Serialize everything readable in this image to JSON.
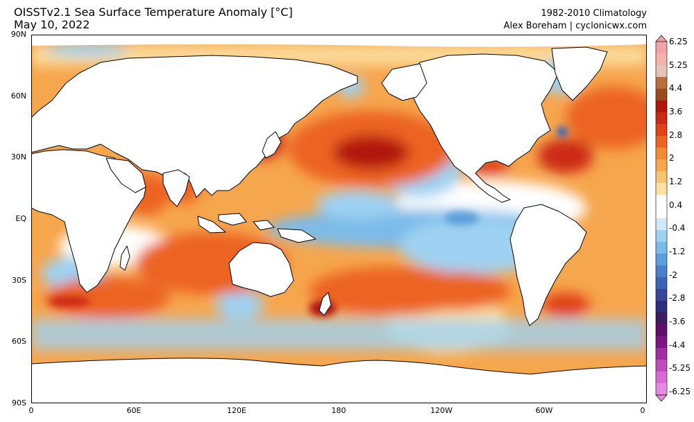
{
  "title": {
    "line1": "OISSTv2.1 Sea Surface Temperature Anomaly [°C]",
    "line2": "May 10, 2022"
  },
  "credits": {
    "line1": "1982-2010 Climatology",
    "line2": "Alex Boreham | cyclonicwx.com"
  },
  "lat_labels": [
    "90N",
    "60N",
    "30N",
    "EQ",
    "30S",
    "60S",
    "90S"
  ],
  "lon_labels": [
    "0",
    "60E",
    "120E",
    "180",
    "120W",
    "60W",
    "0"
  ],
  "colorbar": {
    "labels": [
      "6.25",
      "5.25",
      "4.4",
      "3.6",
      "2.8",
      "2",
      "1.2",
      "0.4",
      "-0.4",
      "-1.2",
      "-2",
      "-2.8",
      "-3.6",
      "-4.4",
      "-5.25",
      "-6.25"
    ],
    "colors": [
      "#f2a3a3",
      "#f0b4a8",
      "#e6c3b6",
      "#b86f3c",
      "#9c4a1a",
      "#b2150e",
      "#cc2a14",
      "#e14317",
      "#ec6422",
      "#f28a35",
      "#f6a64d",
      "#f9c374",
      "#fde0a2",
      "#ffffff",
      "#ffffff",
      "#cfe9f9",
      "#9fd2f2",
      "#7bbbe9",
      "#5d9fdc",
      "#4a7fcf",
      "#3d63b8",
      "#35469b",
      "#2c2d7c",
      "#3e1a5e",
      "#5e0f6a",
      "#7d1682",
      "#a02da2",
      "#c04bbd",
      "#d86ad3",
      "#e58ae0"
    ]
  },
  "map": {
    "ocean_anomaly_colors": {
      "warm_strong": "#c0220f",
      "warm": "#ec6422",
      "warm_weak": "#f6a64d",
      "neutral": "#ffffff",
      "cool_weak": "#9fd2f2",
      "cool": "#5d9fdc"
    },
    "land_color": "#ffffff",
    "coast_color": "#000000"
  }
}
